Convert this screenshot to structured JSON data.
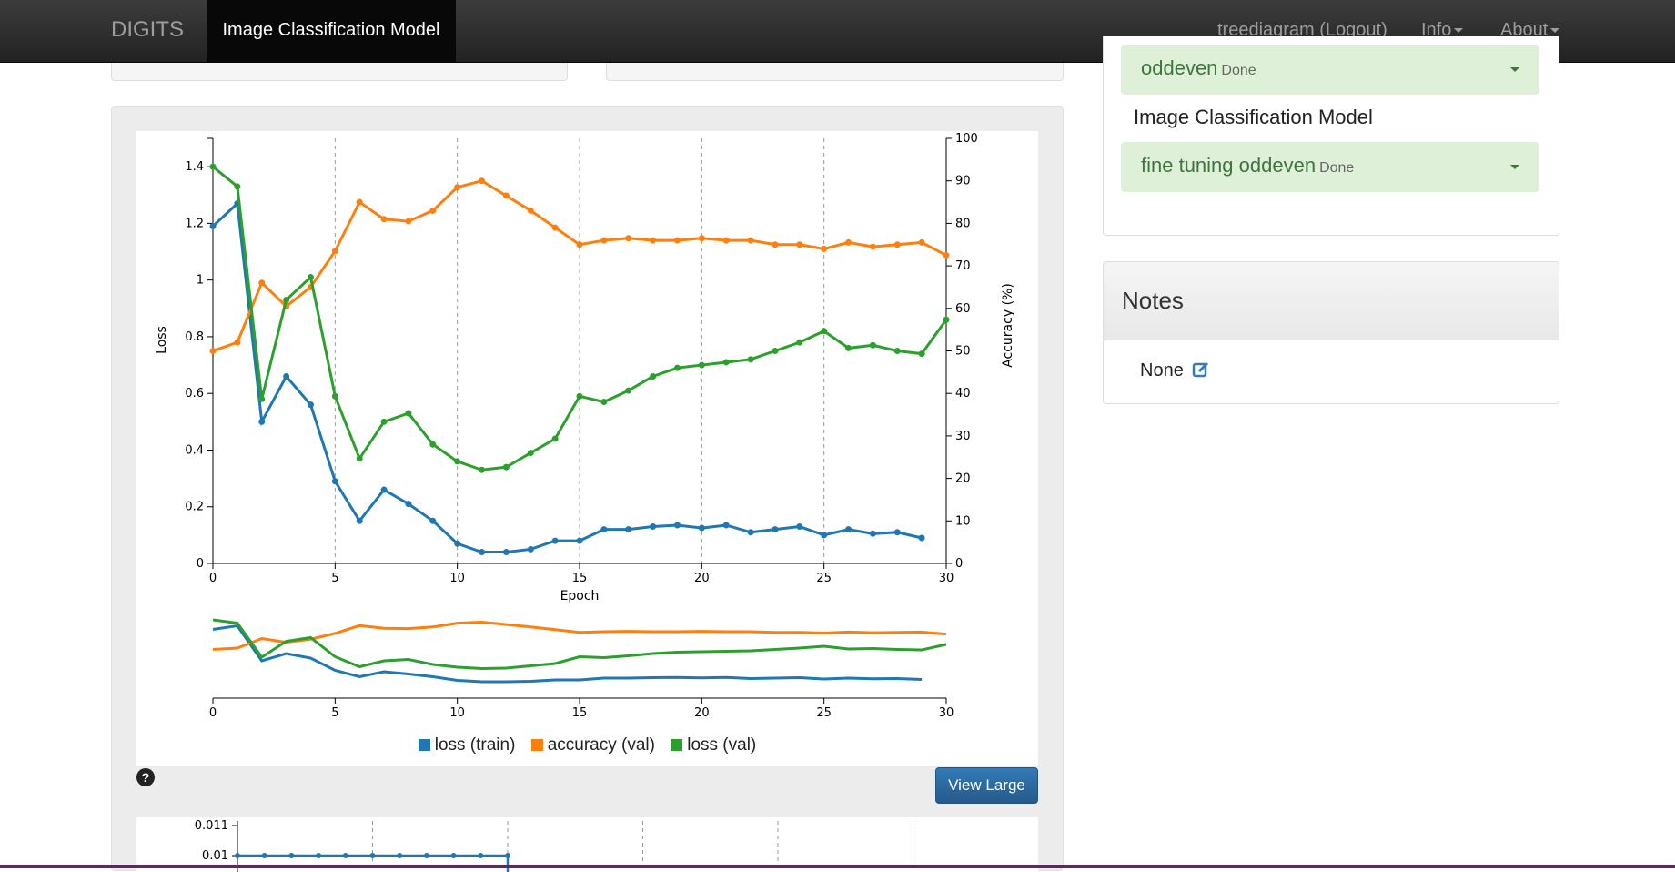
{
  "navbar": {
    "brand": "DIGITS",
    "active_tab": "Image Classification Model",
    "user": "treediagram (Logout)",
    "info": "Info",
    "about": "About"
  },
  "sidebar": {
    "jobs": [
      {
        "name": "oddeven",
        "status": "Done"
      },
      {
        "name": "fine tuning oddeven",
        "status": "Done"
      }
    ],
    "group_title": "Image Classification Model"
  },
  "notes": {
    "title": "Notes",
    "value": "None"
  },
  "buttons": {
    "view_large": "View Large",
    "help": "?"
  },
  "colors": {
    "loss_train": "#1f77b4",
    "accuracy_val": "#ff7f0e",
    "loss_val": "#2ca02c"
  },
  "chart_data": [
    {
      "type": "line",
      "xlabel": "Epoch",
      "ylabel": "Loss",
      "y2label": "Accuracy (%)",
      "xlim": [
        0,
        30
      ],
      "ylim": [
        0,
        1.5
      ],
      "y2lim": [
        0,
        100
      ],
      "x_ticks": [
        0,
        5,
        10,
        15,
        20,
        25,
        30
      ],
      "y_ticks": [
        0,
        0.2,
        0.4,
        0.6,
        0.8,
        1,
        1.2,
        1.4
      ],
      "y_tick_labels": [
        "0",
        "0.2",
        "0.4",
        "0.6",
        "0.8",
        "1",
        "1.2",
        "1.4"
      ],
      "y2_ticks": [
        0,
        10,
        20,
        30,
        40,
        50,
        60,
        70,
        80,
        90,
        100
      ],
      "grid": "vertical dashed at x ticks",
      "legend_position": "bottom",
      "series": [
        {
          "name": "loss (train)",
          "axis": "left",
          "x": [
            0,
            1,
            2,
            3,
            4,
            5,
            6,
            7,
            8,
            9,
            10,
            11,
            12,
            13,
            14,
            15,
            16,
            17,
            18,
            19,
            20,
            21,
            22,
            23,
            24,
            25,
            26,
            27,
            28,
            29
          ],
          "values": [
            1.19,
            1.27,
            0.5,
            0.66,
            0.56,
            0.29,
            0.15,
            0.26,
            0.21,
            0.15,
            0.07,
            0.04,
            0.04,
            0.05,
            0.08,
            0.08,
            0.12,
            0.12,
            0.13,
            0.135,
            0.125,
            0.135,
            0.11,
            0.12,
            0.13,
            0.1,
            0.12,
            0.105,
            0.11,
            0.09
          ]
        },
        {
          "name": "accuracy (val)",
          "axis": "right",
          "x": [
            0,
            1,
            2,
            3,
            4,
            5,
            6,
            7,
            8,
            9,
            10,
            11,
            12,
            13,
            14,
            15,
            16,
            17,
            18,
            19,
            20,
            21,
            22,
            23,
            24,
            25,
            26,
            27,
            28,
            29,
            30
          ],
          "values": [
            50,
            52,
            66,
            60.5,
            65,
            73.5,
            85,
            81,
            80.5,
            83,
            88.5,
            90,
            86.5,
            83,
            79,
            75,
            76,
            76.5,
            76,
            76,
            76.5,
            76,
            76,
            75,
            75,
            74,
            75.5,
            74.5,
            75,
            75.5,
            72.5
          ]
        },
        {
          "name": "loss (val)",
          "axis": "left",
          "x": [
            0,
            1,
            2,
            3,
            4,
            5,
            6,
            7,
            8,
            9,
            10,
            11,
            12,
            13,
            14,
            15,
            16,
            17,
            18,
            19,
            20,
            21,
            22,
            23,
            24,
            25,
            26,
            27,
            28,
            29,
            30
          ],
          "values": [
            1.4,
            1.33,
            0.58,
            0.93,
            1.01,
            0.59,
            0.37,
            0.5,
            0.53,
            0.42,
            0.36,
            0.33,
            0.34,
            0.39,
            0.44,
            0.59,
            0.57,
            0.61,
            0.66,
            0.69,
            0.7,
            0.71,
            0.72,
            0.75,
            0.78,
            0.82,
            0.76,
            0.77,
            0.75,
            0.74,
            0.86
          ]
        }
      ]
    },
    {
      "type": "line",
      "role": "overview-brush",
      "xlim": [
        0,
        30
      ],
      "x_ticks": [
        0,
        5,
        10,
        15,
        20,
        25,
        30
      ]
    },
    {
      "type": "line",
      "role": "learning-rate (partially visible)",
      "y_ticks": [
        0.01,
        0.011
      ],
      "y_tick_labels": [
        "0.01",
        "0.011"
      ],
      "series": [
        {
          "name": "",
          "x": [
            0,
            1,
            2,
            3,
            4,
            5,
            6,
            7,
            8,
            9,
            10
          ],
          "values": [
            0.01,
            0.01,
            0.01,
            0.01,
            0.01,
            0.01,
            0.01,
            0.01,
            0.01,
            0.01,
            0.01
          ]
        }
      ]
    }
  ]
}
